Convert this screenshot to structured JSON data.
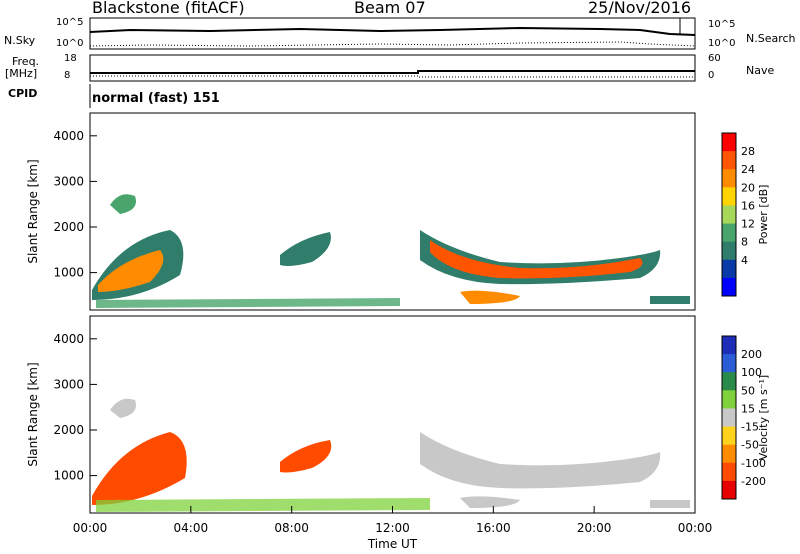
{
  "header": {
    "title_left": "Blackstone (fitACF)",
    "title_mid": "Beam 07",
    "title_right": "25/Nov/2016"
  },
  "top_panels": {
    "nsky_label": "N.Sky",
    "nsky_top": "10^5",
    "nsky_bottom": "10^0",
    "nsearch_label": "N.Search",
    "nsearch_top": "10^5",
    "nsearch_bottom": "10^0",
    "freq_label_1": "Freq.",
    "freq_label_2": "[MHz]",
    "freq_top": "18",
    "freq_bottom": "8",
    "nave_label": "Nave",
    "nave_top": "60",
    "nave_bottom": "0",
    "cpid_label": "CPID",
    "cpid_text": "normal (fast) 151"
  },
  "chart_data": [
    {
      "type": "heatmap",
      "name": "power",
      "ylabel": "Slant Range [km]",
      "ylim": [
        180,
        4500
      ],
      "yticks": [
        1000,
        2000,
        3000,
        4000
      ],
      "colorbar_label": "Power [dB]",
      "colorbar_ticks": [
        "28",
        "24",
        "20",
        "16",
        "12",
        "8",
        "4"
      ],
      "colorbar_colors": [
        "#ff0000",
        "#ff5500",
        "#ff8c00",
        "#ffd400",
        "#a8d85a",
        "#49a56b",
        "#2f7d6a",
        "#0a3aa8",
        "#0000ff"
      ]
    },
    {
      "type": "heatmap",
      "name": "velocity",
      "ylabel": "Slant Range [km]",
      "xlabel": "Time UT",
      "ylim": [
        180,
        4500
      ],
      "yticks": [
        1000,
        2000,
        3000,
        4000
      ],
      "xticks": [
        "00:00",
        "04:00",
        "08:00",
        "12:00",
        "16:00",
        "20:00",
        "00:00"
      ],
      "colorbar_label": "Velocity [m s⁻¹]",
      "colorbar_ticks": [
        "200",
        "100",
        "50",
        "15",
        "-15",
        "-50",
        "-100",
        "-200"
      ],
      "colorbar_colors": [
        "#1e2db8",
        "#2a5cd6",
        "#2a8a4a",
        "#7fd23c",
        "#c8c8c8",
        "#ffd21e",
        "#ff8c00",
        "#ff4b00",
        "#e60000"
      ]
    }
  ]
}
